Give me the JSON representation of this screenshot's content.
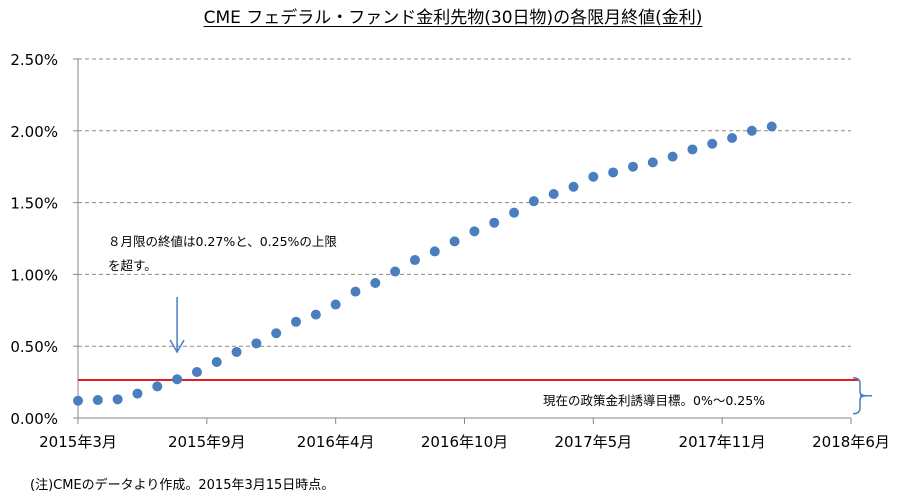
{
  "chart_data": {
    "type": "scatter",
    "title": "CME フェデラル・ファンド金利先物(30日物)の各限月終値(金利)",
    "xlabel": "",
    "ylabel": "",
    "ylim": [
      0,
      2.5
    ],
    "xlim_months": [
      "2015-03",
      "2018-06"
    ],
    "grid": true,
    "y_ticks": [
      "0.00%",
      "0.50%",
      "1.00%",
      "1.50%",
      "2.00%",
      "2.50%"
    ],
    "x_ticks": [
      {
        "label": "2015年3月",
        "month_index": 0
      },
      {
        "label": "2015年9月",
        "month_index": 6.5
      },
      {
        "label": "2016年4月",
        "month_index": 13
      },
      {
        "label": "2016年10月",
        "month_index": 19.5
      },
      {
        "label": "2017年5月",
        "month_index": 26
      },
      {
        "label": "2017年11月",
        "month_index": 32.5
      },
      {
        "label": "2018年6月",
        "month_index": 39
      }
    ],
    "series": [
      {
        "name": "各限月終値",
        "color": "#4a7ebf",
        "x_start": "2015-03",
        "values": [
          0.12,
          0.125,
          0.13,
          0.17,
          0.22,
          0.27,
          0.32,
          0.39,
          0.46,
          0.52,
          0.59,
          0.67,
          0.72,
          0.79,
          0.88,
          0.94,
          1.02,
          1.1,
          1.16,
          1.23,
          1.3,
          1.36,
          1.43,
          1.51,
          1.56,
          1.61,
          1.68,
          1.71,
          1.75,
          1.78,
          1.82,
          1.87,
          1.91,
          1.95,
          2.0,
          2.03
        ]
      }
    ],
    "reference_line": {
      "value": 0.265,
      "color": "#e02020"
    },
    "annotations": [
      {
        "text_line1": "８月限の終値は0.27%と、0.25%の上限",
        "text_line2": "を超す。",
        "arrow_to_month_index": 5
      },
      {
        "text": "現在の政策金利誘導目標。0%～0.25%",
        "range": [
          0,
          0.25
        ]
      }
    ]
  },
  "footnote": "(注)CMEのデータより作成。2015年3月15日時点。"
}
